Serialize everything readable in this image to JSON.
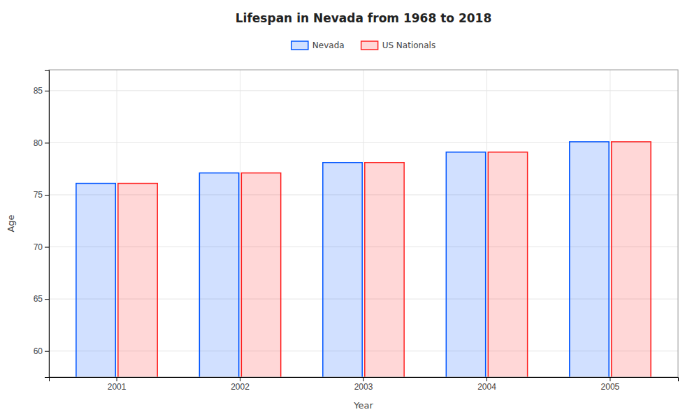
{
  "chart_data": {
    "type": "bar",
    "title": "Lifespan in Nevada from 1968 to 2018",
    "xlabel": "Year",
    "ylabel": "Age",
    "categories": [
      "2001",
      "2002",
      "2003",
      "2004",
      "2005"
    ],
    "series": [
      {
        "name": "Nevada",
        "color": "#0055ff",
        "values": [
          76.1,
          77.1,
          78.1,
          79.1,
          80.1
        ]
      },
      {
        "name": "US Nationals",
        "color": "#ff2222",
        "values": [
          76.1,
          77.1,
          78.1,
          79.1,
          80.1
        ]
      }
    ],
    "ylim": [
      57.5,
      87
    ],
    "yticks": [
      60,
      65,
      70,
      75,
      80,
      85
    ],
    "grid": true,
    "legend": "top"
  }
}
